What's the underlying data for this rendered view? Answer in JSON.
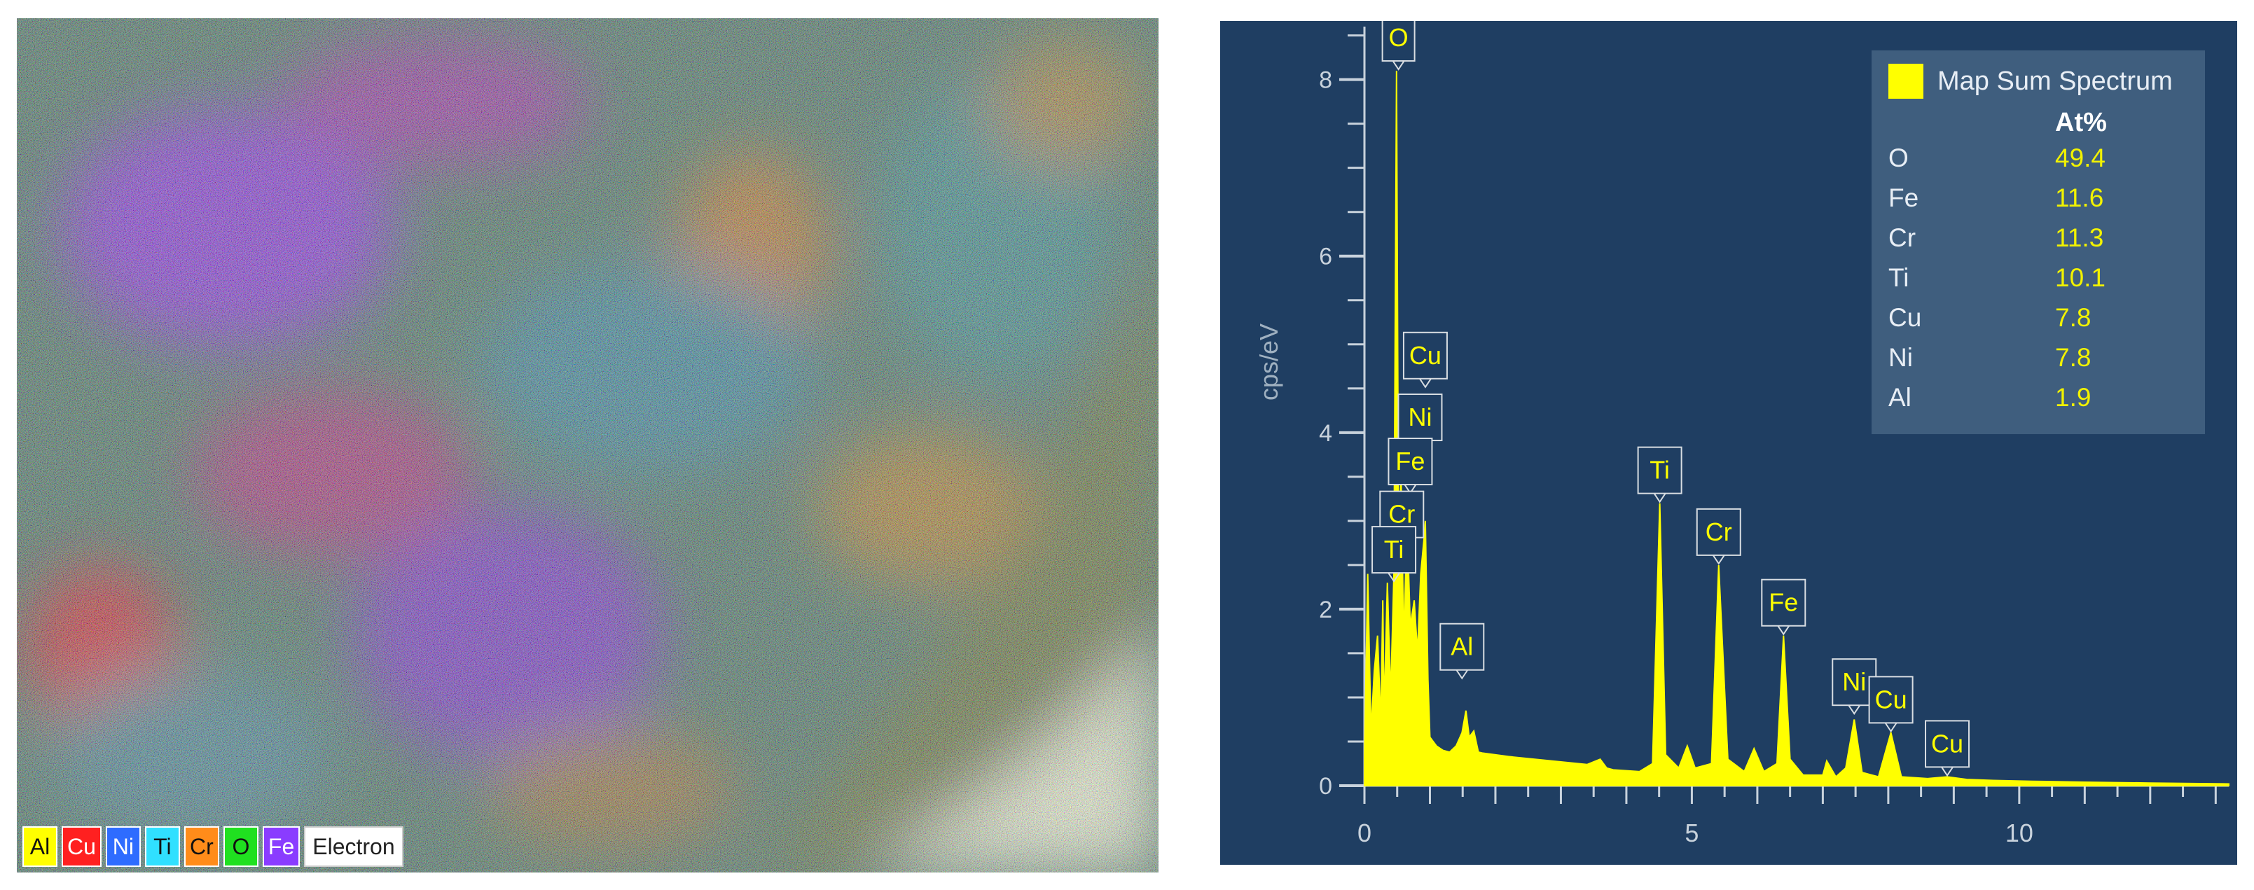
{
  "map": {
    "legend": [
      {
        "label": "Al",
        "color": "#ffff00"
      },
      {
        "label": "Cu",
        "color": "#ff2020"
      },
      {
        "label": "Ni",
        "color": "#2e6cff"
      },
      {
        "label": "Ti",
        "color": "#30e0ff"
      },
      {
        "label": "Cr",
        "color": "#ff8c1a"
      },
      {
        "label": "O",
        "color": "#20e020"
      },
      {
        "label": "Fe",
        "color": "#8a3cff"
      },
      {
        "label": "Electron",
        "color": "#ffffff"
      }
    ]
  },
  "chart_data": {
    "type": "line",
    "title": "",
    "xlabel": "",
    "ylabel": "cps/eV",
    "xlim": [
      0,
      13.2
    ],
    "ylim": [
      0,
      8.6
    ],
    "x_ticks": [
      "0",
      "5",
      "10"
    ],
    "y_ticks": [
      "0",
      "2",
      "4",
      "6",
      "8"
    ],
    "grid": false,
    "legend_position": "top-right",
    "series": [
      {
        "name": "Map Sum Spectrum",
        "color": "#ffff00",
        "x": [
          0.0,
          0.05,
          0.1,
          0.15,
          0.2,
          0.25,
          0.28,
          0.3,
          0.35,
          0.4,
          0.45,
          0.49,
          0.52,
          0.56,
          0.6,
          0.65,
          0.7,
          0.76,
          0.81,
          0.86,
          0.91,
          0.93,
          0.97,
          1.0,
          1.1,
          1.2,
          1.3,
          1.4,
          1.49,
          1.55,
          1.6,
          1.67,
          1.74,
          1.8,
          1.9,
          2.2,
          2.6,
          3.0,
          3.4,
          3.6,
          3.7,
          3.8,
          4.2,
          4.4,
          4.51,
          4.6,
          4.8,
          4.93,
          5.05,
          5.3,
          5.41,
          5.55,
          5.8,
          5.95,
          6.1,
          6.3,
          6.4,
          6.5,
          6.7,
          7.0,
          7.06,
          7.2,
          7.35,
          7.48,
          7.6,
          7.85,
          8.04,
          8.2,
          8.6,
          8.9,
          9.2,
          9.6,
          10.2,
          11.0,
          12.0,
          13.2
        ],
        "y": [
          0.3,
          2.4,
          0.6,
          1.3,
          1.7,
          0.7,
          2.1,
          0.8,
          2.3,
          1.0,
          2.4,
          8.1,
          2.8,
          3.5,
          1.6,
          3.0,
          1.8,
          2.1,
          1.5,
          2.4,
          2.8,
          3.0,
          1.2,
          0.55,
          0.45,
          0.4,
          0.38,
          0.45,
          0.6,
          0.85,
          0.55,
          0.62,
          0.38,
          0.37,
          0.36,
          0.33,
          0.3,
          0.27,
          0.24,
          0.3,
          0.2,
          0.18,
          0.16,
          0.25,
          3.2,
          0.35,
          0.2,
          0.45,
          0.2,
          0.25,
          2.5,
          0.3,
          0.16,
          0.42,
          0.16,
          0.25,
          1.7,
          0.3,
          0.12,
          0.12,
          0.28,
          0.1,
          0.2,
          0.75,
          0.15,
          0.1,
          0.6,
          0.1,
          0.08,
          0.1,
          0.07,
          0.06,
          0.05,
          0.04,
          0.03,
          0.02
        ]
      }
    ],
    "annotations": [
      {
        "label": "O",
        "x": 0.52,
        "y": 8.1
      },
      {
        "label": "Cu",
        "x": 0.93,
        "y": 4.5
      },
      {
        "label": "Ni",
        "x": 0.85,
        "y": 3.8
      },
      {
        "label": "Fe",
        "x": 0.7,
        "y": 3.3
      },
      {
        "label": "Cr",
        "x": 0.57,
        "y": 2.7
      },
      {
        "label": "Ti",
        "x": 0.45,
        "y": 2.3
      },
      {
        "label": "Al",
        "x": 1.49,
        "y": 1.2
      },
      {
        "label": "Ti",
        "x": 4.51,
        "y": 3.2
      },
      {
        "label": "Cr",
        "x": 5.41,
        "y": 2.5
      },
      {
        "label": "Fe",
        "x": 6.4,
        "y": 1.7
      },
      {
        "label": "Ni",
        "x": 7.48,
        "y": 0.8
      },
      {
        "label": "Cu",
        "x": 8.04,
        "y": 0.6
      },
      {
        "label": "Cu",
        "x": 8.9,
        "y": 0.1
      }
    ],
    "quant_table": {
      "column_header": "At%",
      "rows": [
        {
          "element": "O",
          "value": "49.4"
        },
        {
          "element": "Fe",
          "value": "11.6"
        },
        {
          "element": "Cr",
          "value": "11.3"
        },
        {
          "element": "Ti",
          "value": "10.1"
        },
        {
          "element": "Cu",
          "value": "7.8"
        },
        {
          "element": "Ni",
          "value": "7.8"
        },
        {
          "element": "Al",
          "value": "1.9"
        }
      ]
    }
  }
}
